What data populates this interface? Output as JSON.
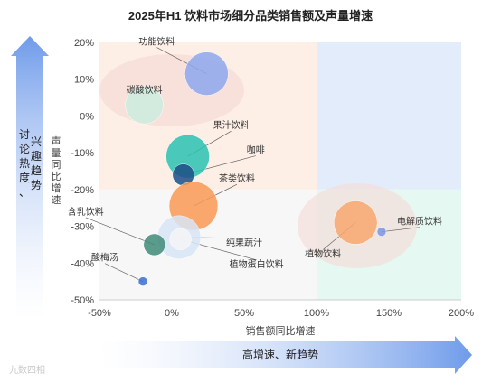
{
  "chart_data": {
    "type": "scatter",
    "title": "2025年H1 饮料市场细分品类销售额及声量增速",
    "xlabel": "销售额同比增速",
    "ylabel": "声量同比增速",
    "xlim": [
      -50,
      200
    ],
    "ylim": [
      -50,
      20
    ],
    "xticks": [
      "-50%",
      "0%",
      "50%",
      "100%",
      "150%",
      "200%"
    ],
    "yticks": [
      "20%",
      "10%",
      "0%",
      "-10%",
      "-20%",
      "-30%",
      "-40%",
      "-50%"
    ],
    "grid": false,
    "x_arrow_label": "高增速、新趋势",
    "y_arrow_label": "讨论热度、兴趣趋势",
    "watermark": "九数四相",
    "points": [
      {
        "label": "功能饮料",
        "x": 24,
        "y": 11.5,
        "size": "large",
        "color": "#8EA8EE"
      },
      {
        "label": "碳酸饮料",
        "x": -19,
        "y": 3,
        "size": "medium",
        "color": "#CDEDE0"
      },
      {
        "label": "果汁饮料",
        "x": 11,
        "y": -11,
        "size": "large",
        "color": "#2BC3B3"
      },
      {
        "label": "咖啡",
        "x": 8,
        "y": -16,
        "size": "small",
        "color": "#1E4E86"
      },
      {
        "label": "茶类饮料",
        "x": 15,
        "y": -24.5,
        "size": "xlarge",
        "color": "#FA9A55"
      },
      {
        "label": "纯果蔬汁",
        "x": 5,
        "y": -33,
        "size": "large",
        "color": "#D9E6F6"
      },
      {
        "label": "含乳饮料",
        "x": -12,
        "y": -35,
        "size": "small",
        "color": "#3F8B7A"
      },
      {
        "label": "酸梅汤",
        "x": -20,
        "y": -45,
        "size": "tiny",
        "color": "#3A70D8"
      },
      {
        "label": "植物蛋白饮料",
        "x": 6,
        "y": -33.5,
        "size": "small",
        "color": "#F4F5F8"
      },
      {
        "label": "植物饮料",
        "x": 127,
        "y": -29,
        "size": "large",
        "color": "#F9A870"
      },
      {
        "label": "电解质饮料",
        "x": 145,
        "y": -31.5,
        "size": "tiny",
        "color": "#7C97E6"
      }
    ],
    "colors": {
      "quadrant_top_left": "#FDEFE6",
      "quadrant_top_right": "#E3ECFB",
      "quadrant_bottom_left": "#F7F7F7",
      "quadrant_bottom_right": "#E6F8F2",
      "arrow": "#7FA7EC"
    }
  }
}
